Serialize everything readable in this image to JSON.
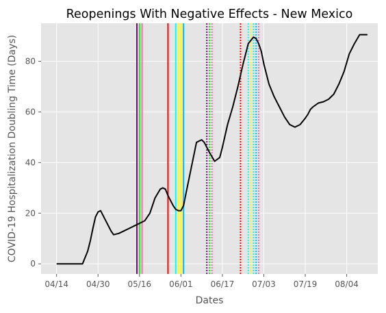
{
  "chart_data": {
    "type": "line",
    "title": "Reopenings With Negative Effects - New Mexico",
    "xlabel": "Dates",
    "ylabel": "COVID-19 Hospitalization Doubling Time (Days)",
    "x_ticks": [
      "04/14",
      "04/30",
      "05/16",
      "06/01",
      "06/17",
      "07/03",
      "07/19",
      "08/04"
    ],
    "y_ticks": [
      0,
      20,
      40,
      60,
      80
    ],
    "xlim": [
      "2020-04-08",
      "2020-08-16"
    ],
    "ylim": [
      -4,
      95
    ],
    "grid": true,
    "colors": {
      "background": "#e5e5e5",
      "grid": "#ffffff",
      "line": "#000000",
      "text": "#555555"
    },
    "series": [
      {
        "color": "#000000",
        "x": [
          "2020-04-14",
          "2020-04-16",
          "2020-04-18",
          "2020-04-20",
          "2020-04-21",
          "2020-04-22",
          "2020-04-24",
          "2020-04-26",
          "2020-04-27",
          "2020-04-28",
          "2020-04-29",
          "2020-04-30",
          "2020-05-01",
          "2020-05-03",
          "2020-05-05",
          "2020-05-06",
          "2020-05-08",
          "2020-05-10",
          "2020-05-12",
          "2020-05-14",
          "2020-05-16",
          "2020-05-18",
          "2020-05-20",
          "2020-05-22",
          "2020-05-24",
          "2020-05-25",
          "2020-05-26",
          "2020-05-27",
          "2020-05-29",
          "2020-05-30",
          "2020-05-31",
          "2020-06-01",
          "2020-06-02",
          "2020-06-03",
          "2020-06-05",
          "2020-06-07",
          "2020-06-09",
          "2020-06-10",
          "2020-06-11",
          "2020-06-12",
          "2020-06-14",
          "2020-06-16",
          "2020-06-17",
          "2020-06-19",
          "2020-06-21",
          "2020-06-23",
          "2020-06-25",
          "2020-06-27",
          "2020-06-29",
          "2020-06-30",
          "2020-07-01",
          "2020-07-02",
          "2020-07-03",
          "2020-07-05",
          "2020-07-07",
          "2020-07-09",
          "2020-07-11",
          "2020-07-13",
          "2020-07-15",
          "2020-07-17",
          "2020-07-19",
          "2020-07-20",
          "2020-07-21",
          "2020-07-22",
          "2020-07-24",
          "2020-07-26",
          "2020-07-28",
          "2020-07-30",
          "2020-08-01",
          "2020-08-03",
          "2020-08-05",
          "2020-08-07",
          "2020-08-09",
          "2020-08-11",
          "2020-08-12"
        ],
        "y": [
          0,
          0,
          0,
          0,
          0,
          0,
          0,
          5,
          9,
          14,
          18.5,
          20.5,
          21,
          17,
          13,
          11.5,
          12,
          13,
          14,
          15,
          16,
          17,
          20,
          26,
          29.5,
          30,
          29.5,
          27,
          23,
          21.5,
          21,
          21,
          23,
          28,
          38,
          48,
          49,
          48,
          46,
          44,
          40.5,
          42,
          46,
          55,
          62,
          70,
          79,
          87,
          89.5,
          89,
          87,
          84,
          79,
          71,
          66,
          62,
          58,
          55,
          54,
          55,
          57.5,
          59,
          61,
          62,
          63.5,
          64,
          65,
          67,
          71,
          76,
          83,
          87,
          90.5,
          90.5,
          90.5
        ]
      }
    ],
    "events": [
      {
        "date": "2020-05-15",
        "color": "#800080",
        "style": "solid"
      },
      {
        "date": "2020-05-16",
        "color": "#00ff00",
        "style": "solid"
      },
      {
        "date": "2020-05-17",
        "color": "#ff69b4",
        "style": "solid"
      },
      {
        "date": "2020-05-27",
        "color": "#ff0000",
        "style": "solid"
      },
      {
        "date": "2020-05-30",
        "color": "#00ffff",
        "style": "solid"
      },
      {
        "date": "2020-05-31",
        "color": "#ffff00",
        "style": "solid"
      },
      {
        "date": "2020-06-01",
        "color": "#ffff00",
        "style": "solid"
      },
      {
        "date": "2020-06-02",
        "color": "#00bfff",
        "style": "solid"
      },
      {
        "date": "2020-06-11",
        "color": "#800080",
        "style": "dotted"
      },
      {
        "date": "2020-06-12",
        "color": "#00ff00",
        "style": "dotted"
      },
      {
        "date": "2020-06-13",
        "color": "#ff69b4",
        "style": "dotted"
      },
      {
        "date": "2020-06-24",
        "color": "#ff0000",
        "style": "dotted"
      },
      {
        "date": "2020-06-27",
        "color": "#00ffff",
        "style": "dotted"
      },
      {
        "date": "2020-06-28",
        "color": "#ffff00",
        "style": "dotted"
      },
      {
        "date": "2020-06-29",
        "color": "#00ffff",
        "style": "dotted"
      },
      {
        "date": "2020-06-30",
        "color": "#00bfff",
        "style": "dotted"
      },
      {
        "date": "2020-07-01",
        "color": "#ff69b4",
        "style": "dotted"
      }
    ]
  }
}
